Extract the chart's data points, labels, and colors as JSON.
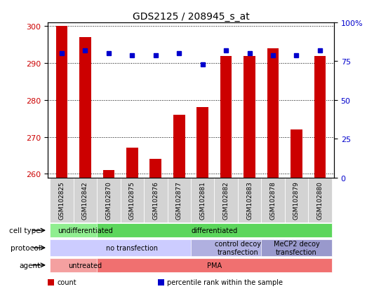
{
  "title": "GDS2125 / 208945_s_at",
  "samples": [
    "GSM102825",
    "GSM102842",
    "GSM102870",
    "GSM102875",
    "GSM102876",
    "GSM102877",
    "GSM102881",
    "GSM102882",
    "GSM102883",
    "GSM102878",
    "GSM102879",
    "GSM102880"
  ],
  "counts": [
    300,
    297,
    261,
    267,
    264,
    276,
    278,
    292,
    292,
    294,
    272,
    292
  ],
  "percentile_ranks": [
    80,
    82,
    80,
    79,
    79,
    80,
    73,
    82,
    80,
    79,
    79,
    82
  ],
  "ylim_left": [
    259,
    301
  ],
  "ylim_right": [
    0,
    100
  ],
  "yticks_left": [
    260,
    270,
    280,
    290,
    300
  ],
  "yticks_right": [
    0,
    25,
    50,
    75,
    100
  ],
  "bar_color": "#cc0000",
  "dot_color": "#0000cc",
  "grid_color": "#000000",
  "cell_type_groups": [
    {
      "label": "undifferentiated",
      "start": 0,
      "end": 2,
      "color": "#90ee90"
    },
    {
      "label": "differentiated",
      "start": 2,
      "end": 11,
      "color": "#5cd65c"
    }
  ],
  "protocol_groups": [
    {
      "label": "no transfection",
      "start": 0,
      "end": 6,
      "color": "#ccccff"
    },
    {
      "label": "control decoy\ntransfection",
      "start": 6,
      "end": 9,
      "color": "#b0b0e0"
    },
    {
      "label": "MeCP2 decoy\ntransfection",
      "start": 9,
      "end": 11,
      "color": "#9999cc"
    }
  ],
  "agent_groups": [
    {
      "label": "untreated",
      "start": 0,
      "end": 2,
      "color": "#f4a0a0"
    },
    {
      "label": "PMA",
      "start": 2,
      "end": 11,
      "color": "#f07070"
    }
  ],
  "row_labels": [
    "cell type",
    "protocol",
    "agent"
  ],
  "legend_items": [
    {
      "color": "#cc0000",
      "label": "count"
    },
    {
      "color": "#0000cc",
      "label": "percentile rank within the sample"
    }
  ]
}
